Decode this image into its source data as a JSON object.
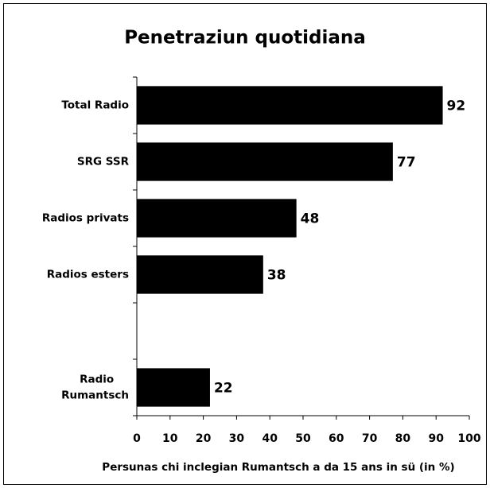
{
  "chart_data": {
    "type": "bar",
    "orientation": "horizontal",
    "title": "Penetraziun quotidiana",
    "xlabel": "Persunas chi inclegian Rumantsch a da 15 ans in sü (in %)",
    "categories": [
      "Total Radio",
      "SRG SSR",
      "Radios privats",
      "Radios esters",
      null,
      "Radio\nRumantsch"
    ],
    "values": [
      92,
      77,
      48,
      38,
      null,
      22
    ],
    "color": "#000000",
    "xlim": [
      0,
      100
    ],
    "xticks": [
      0,
      10,
      20,
      30,
      40,
      50,
      60,
      70,
      80,
      90,
      100
    ],
    "grid": false
  }
}
